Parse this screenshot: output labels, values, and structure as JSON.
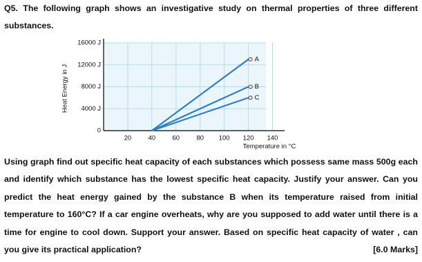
{
  "question": {
    "heading": "Q5. The following graph shows an investigative study on thermal properties of three different substances.",
    "body": "Using graph find out specific heat capacity of each substances which possess same mass 500g each and identify which substance has the lowest specific heat capacity. Justify your answer.  Can you predict the heat energy gained by the substance B when its temperature raised from initial temperature to 160°C? If a car engine overheats, why are you supposed to add water until there is a time for engine to cool down. Support your answer. Based on specific heat capacity of water , can you give its practical application?",
    "marks": "[6.0 Marks]"
  },
  "chart_data": {
    "type": "line",
    "x_label": "Temperature in °C",
    "y_label": "Heat Energy in J",
    "x": [
      40,
      120
    ],
    "series": [
      {
        "name": "A",
        "color": "#2f7fc1",
        "values": [
          0,
          13000
        ]
      },
      {
        "name": "B",
        "color": "#2f7fc1",
        "values": [
          0,
          8000
        ]
      },
      {
        "name": "C",
        "color": "#2f7fc1",
        "values": [
          0,
          6000
        ]
      }
    ],
    "xlim": [
      0,
      150
    ],
    "ylim": [
      0,
      16000
    ],
    "xticks": [
      20,
      40,
      60,
      80,
      100,
      120,
      140
    ],
    "yticks": [
      0,
      {
        "value": 4000,
        "label": "4000 J"
      },
      {
        "value": 8000,
        "label": "8000 J"
      },
      {
        "value": 12000,
        "label": "12000 J"
      },
      {
        "value": 16000,
        "label": "16000 J"
      }
    ],
    "grid": true
  }
}
